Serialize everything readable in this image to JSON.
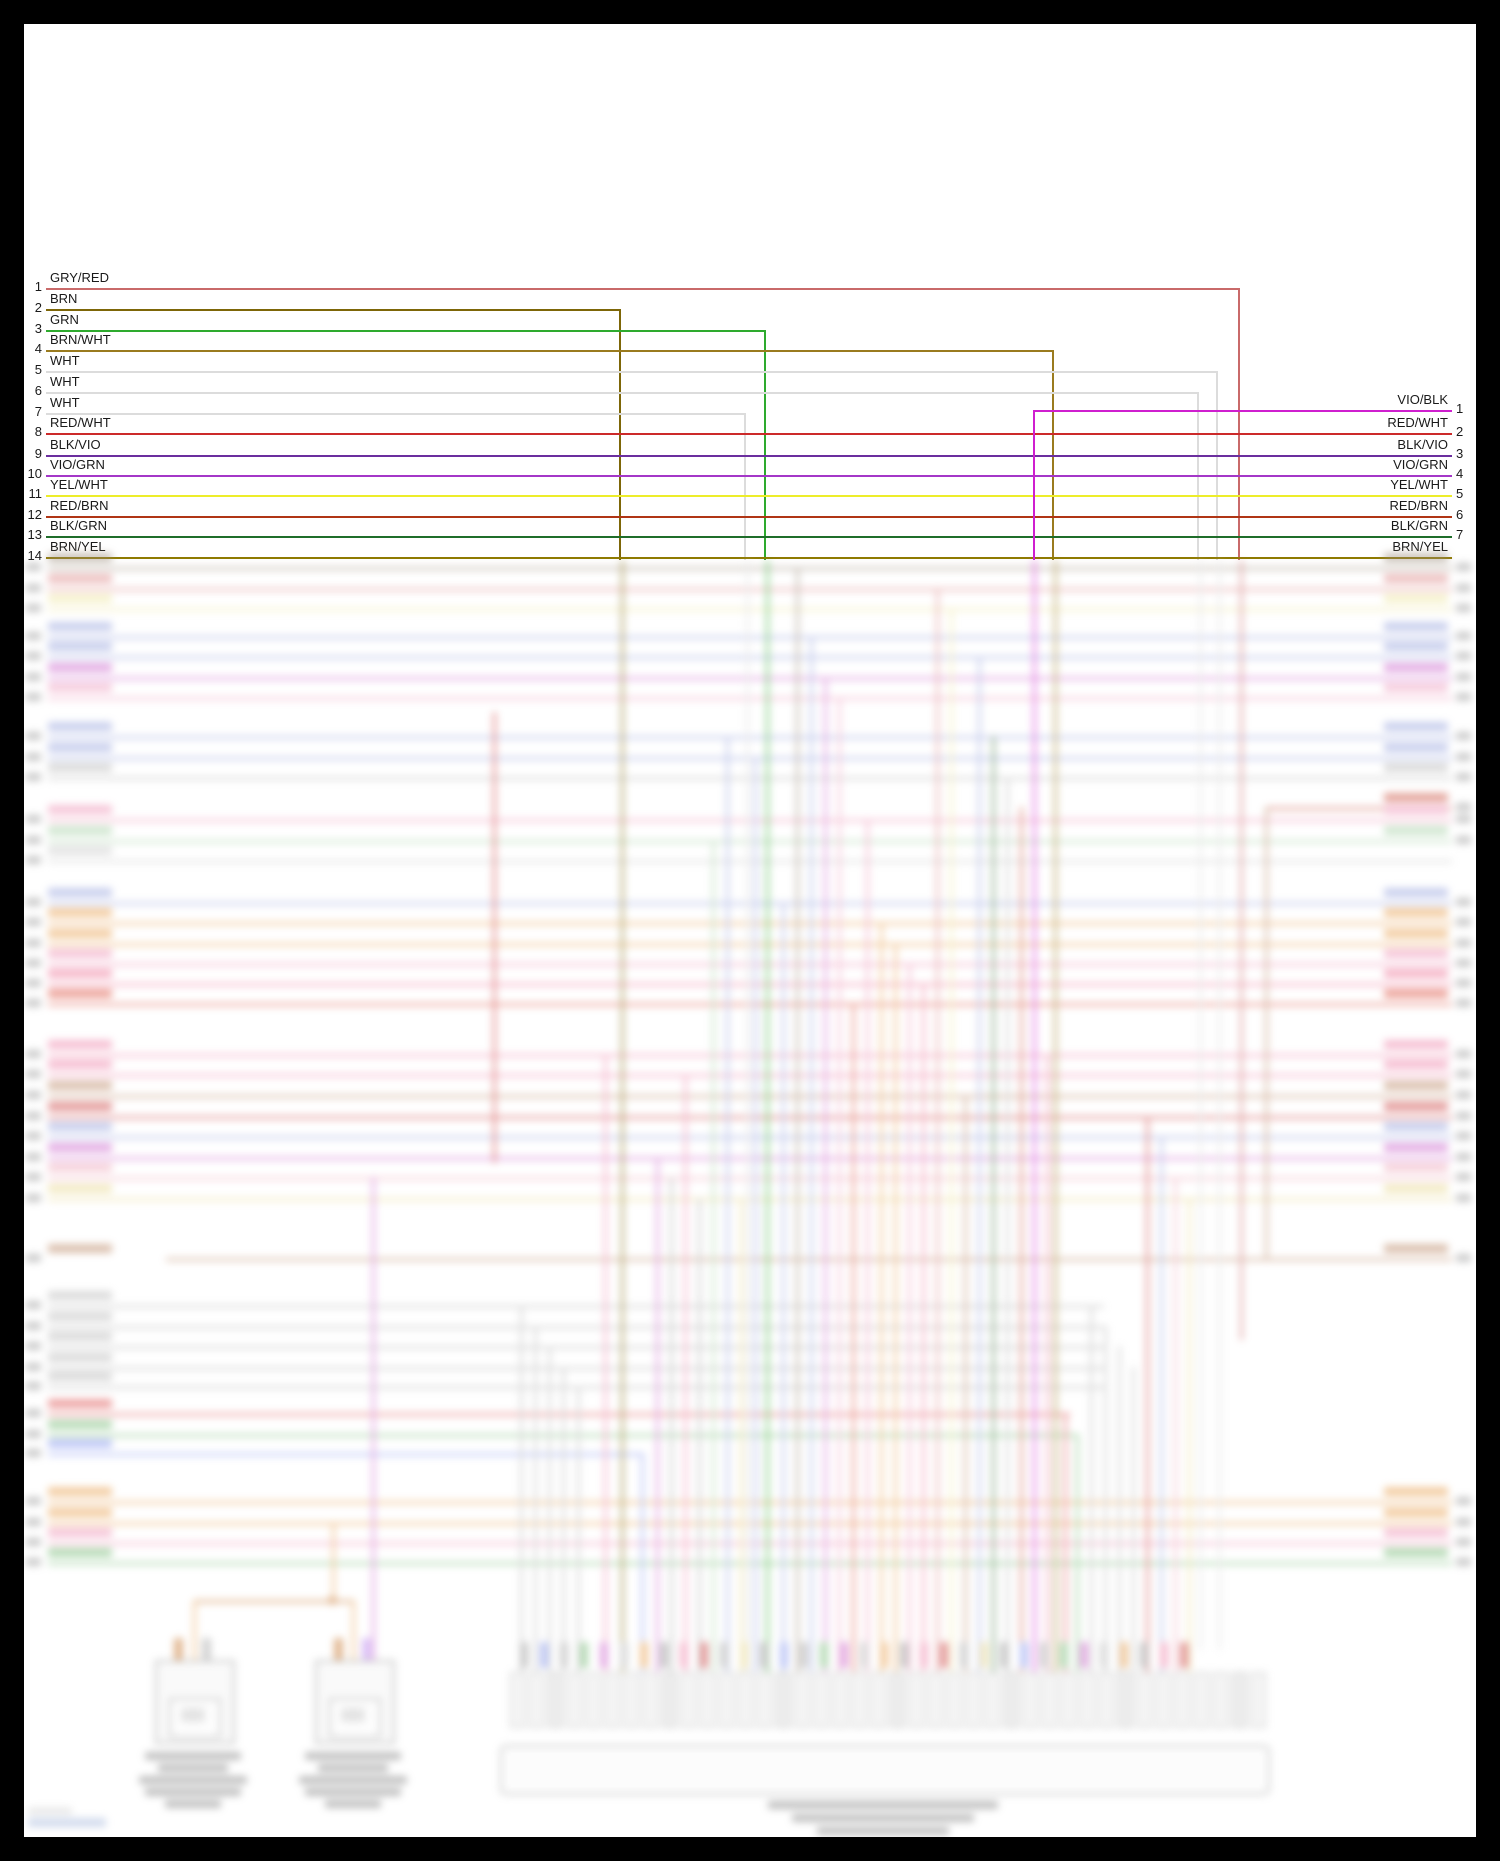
{
  "diagram": {
    "left_wires": [
      {
        "no": "1",
        "label": "GRY/RED",
        "color": "#c96a6a"
      },
      {
        "no": "2",
        "label": "BRN",
        "color": "#7d6608"
      },
      {
        "no": "3",
        "label": "GRN",
        "color": "#2eaa2e"
      },
      {
        "no": "4",
        "label": "BRN/WHT",
        "color": "#9a7b1f"
      },
      {
        "no": "5",
        "label": "WHT",
        "color": "#dcdcdc"
      },
      {
        "no": "6",
        "label": "WHT",
        "color": "#dcdcdc"
      },
      {
        "no": "7",
        "label": "WHT",
        "color": "#dcdcdc"
      },
      {
        "no": "8",
        "label": "RED/WHT",
        "color": "#cc2a2a"
      },
      {
        "no": "9",
        "label": "BLK/VIO",
        "color": "#6b2e9e"
      },
      {
        "no": "10",
        "label": "VIO/GRN",
        "color": "#a437c8"
      },
      {
        "no": "11",
        "label": "YEL/WHT",
        "color": "#eded2a"
      },
      {
        "no": "12",
        "label": "RED/BRN",
        "color": "#b03515"
      },
      {
        "no": "13",
        "label": "BLK/GRN",
        "color": "#1f6d2a"
      },
      {
        "no": "14",
        "label": "BRN/YEL",
        "color": "#8f7a00"
      }
    ],
    "right_wires": [
      {
        "no": "1",
        "label": "VIO/BLK",
        "color": "#cf1fcf"
      },
      {
        "no": "2",
        "label": "RED/WHT",
        "color": "#cc2a2a"
      },
      {
        "no": "3",
        "label": "BLK/VIO",
        "color": "#6b2e9e"
      },
      {
        "no": "4",
        "label": "VIO/GRN",
        "color": "#a437c8"
      },
      {
        "no": "5",
        "label": "YEL/WHT",
        "color": "#eded2a"
      },
      {
        "no": "6",
        "label": "RED/BRN",
        "color": "#b03515"
      },
      {
        "no": "7",
        "label": "BLK/GRN",
        "color": "#1f6d2a"
      },
      {
        "no": "",
        "label": "BRN/YEL",
        "color": "#8f7a00"
      }
    ]
  }
}
